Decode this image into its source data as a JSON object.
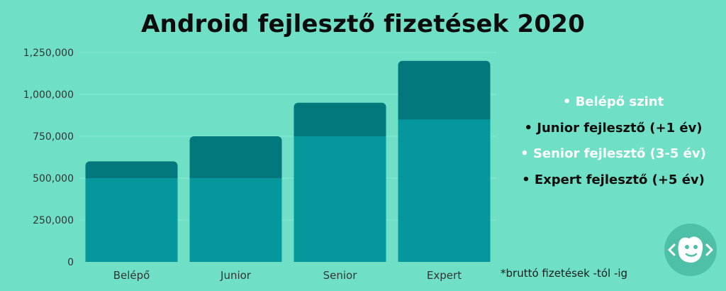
{
  "chart_data": {
    "type": "bar",
    "title": "Android fejlesztő fizetések 2020",
    "categories": [
      "Belépő",
      "Junior",
      "Senior",
      "Expert"
    ],
    "series": [
      {
        "name": "-tól",
        "values": [
          500000,
          500000,
          750000,
          850000
        ]
      },
      {
        "name": "-ig",
        "values": [
          600000,
          750000,
          950000,
          1200000
        ]
      }
    ],
    "ylim": [
      0,
      1250000
    ],
    "yticks": [
      0,
      250000,
      500000,
      750000,
      1000000,
      1250000
    ],
    "ytick_labels": [
      "0",
      "250,000",
      "500,000",
      "750,000",
      "1,000,000",
      "1,250,000"
    ],
    "grid": true
  },
  "legend": [
    {
      "label": "• Belépő szint",
      "color": "#ffffff"
    },
    {
      "label": "• Junior fejlesztő (+1 év)",
      "color": "#0c0c0c"
    },
    {
      "label": "• Senior fejlesztő (3-5 év)",
      "color": "#ffffff"
    },
    {
      "label": "• Expert fejlesztő (+5 év)",
      "color": "#0c0c0c"
    }
  ],
  "note": "*bruttó fizetések -tól -ig",
  "colors": {
    "background": "#6fe0c6",
    "bar_lower": "#05979b",
    "bar_upper": "#02787c",
    "axis_text": "#333333",
    "logo_bg": "#4fc0a8"
  },
  "logo": {
    "icon": "code-brackets-logo-icon"
  }
}
